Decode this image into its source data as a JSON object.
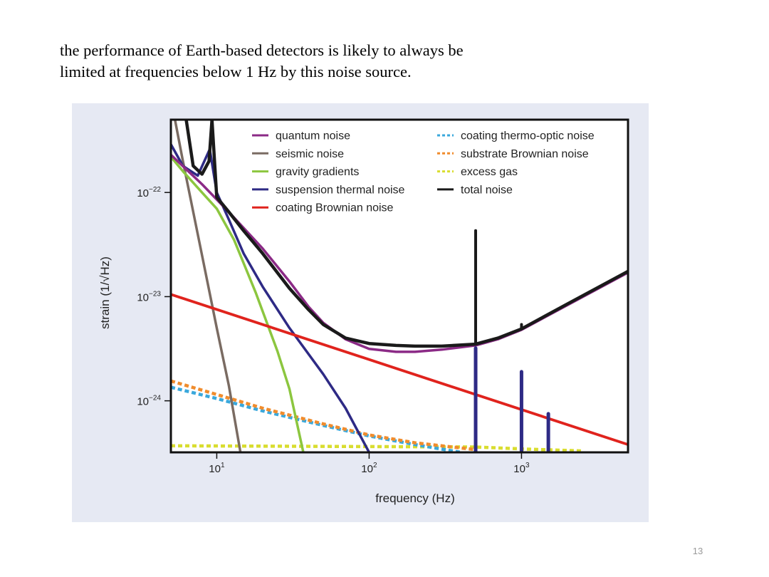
{
  "slide": {
    "text_line1": "the performance of Earth-based detectors is likely to always be",
    "text_line2": "limited at frequencies below 1 Hz by this noise source.",
    "page_number": "13"
  },
  "chart_data": {
    "type": "line",
    "xlabel": "frequency (Hz)",
    "ylabel": "strain (1/√Hz)",
    "xscale": "log",
    "yscale": "log",
    "xlim": [
      5,
      5000
    ],
    "ylim": [
      3.2e-25,
      5e-22
    ],
    "grid": false,
    "legend_position": "top",
    "x_ticks": [
      {
        "value": 10,
        "base": "10",
        "exp": "1"
      },
      {
        "value": 100,
        "base": "10",
        "exp": "2"
      },
      {
        "value": 1000,
        "base": "10",
        "exp": "3"
      }
    ],
    "y_ticks": [
      {
        "value": 1e-22,
        "base": "10",
        "exp": "−22"
      },
      {
        "value": 1e-23,
        "base": "10",
        "exp": "−23"
      },
      {
        "value": 1e-24,
        "base": "10",
        "exp": "−24"
      }
    ],
    "series": [
      {
        "name": "quantum noise",
        "color": "#8b2a86",
        "style": "solid",
        "points": [
          [
            5,
            2.3e-22
          ],
          [
            8,
            1.2e-22
          ],
          [
            12,
            6.5e-23
          ],
          [
            20,
            2.9e-23
          ],
          [
            30,
            1.4e-23
          ],
          [
            40,
            8e-24
          ],
          [
            50,
            5.6e-24
          ],
          [
            70,
            3.9e-24
          ],
          [
            100,
            3.15e-24
          ],
          [
            150,
            2.95e-24
          ],
          [
            200,
            2.95e-24
          ],
          [
            300,
            3.1e-24
          ],
          [
            500,
            3.4e-24
          ],
          [
            700,
            3.9e-24
          ],
          [
            1000,
            4.8e-24
          ],
          [
            2000,
            8.3e-24
          ],
          [
            5000,
            1.7e-23
          ]
        ]
      },
      {
        "name": "seismic noise",
        "color": "#7a6b62",
        "style": "solid",
        "points": [
          [
            5,
            8e-22
          ],
          [
            6,
            2e-22
          ],
          [
            8,
            2.5e-23
          ],
          [
            10,
            5e-24
          ],
          [
            12,
            1.4e-24
          ],
          [
            14.3,
            3.2e-25
          ]
        ]
      },
      {
        "name": "gravity gradients",
        "color": "#8cc63f",
        "style": "solid",
        "points": [
          [
            5,
            2.2e-22
          ],
          [
            6,
            1.6e-22
          ],
          [
            8,
            1e-22
          ],
          [
            10,
            7e-23
          ],
          [
            13,
            3.5e-23
          ],
          [
            18,
            1.1e-23
          ],
          [
            25,
            3e-24
          ],
          [
            30,
            1.3e-24
          ],
          [
            37,
            3.2e-25
          ]
        ]
      },
      {
        "name": "suspension thermal noise",
        "color": "#2e2a85",
        "style": "solid",
        "points": [
          [
            5,
            2.9e-22
          ],
          [
            6,
            1.8e-22
          ],
          [
            7.5,
            1.45e-22
          ],
          [
            9,
            2.6e-22
          ],
          [
            10,
            1e-22
          ],
          [
            12,
            5.5e-23
          ],
          [
            15,
            2.6e-23
          ],
          [
            20,
            1.25e-23
          ],
          [
            30,
            5e-24
          ],
          [
            50,
            1.8e-24
          ],
          [
            70,
            8.5e-25
          ],
          [
            100,
            3.2e-25
          ]
        ]
      },
      {
        "name": "coating Brownian noise",
        "color": "#e0231d",
        "style": "solid",
        "points": [
          [
            5,
            1.05e-23
          ],
          [
            5000,
            3.8e-25
          ]
        ]
      },
      {
        "name": "coating thermo-optic noise",
        "color": "#3aa8dc",
        "style": "dotted",
        "points": [
          [
            5,
            1.35e-24
          ],
          [
            10,
            1.05e-24
          ],
          [
            20,
            8e-25
          ],
          [
            50,
            5.8e-25
          ],
          [
            100,
            4.6e-25
          ],
          [
            200,
            3.8e-25
          ],
          [
            400,
            3.2e-25
          ]
        ]
      },
      {
        "name": "substrate Brownian noise",
        "color": "#f08c2d",
        "style": "dotted",
        "points": [
          [
            5,
            1.55e-24
          ],
          [
            10,
            1.15e-24
          ],
          [
            20,
            8.5e-25
          ],
          [
            50,
            6e-25
          ],
          [
            100,
            4.7e-25
          ],
          [
            200,
            3.95e-25
          ],
          [
            500,
            3.4e-25
          ]
        ]
      },
      {
        "name": "excess gas",
        "color": "#d9dd2f",
        "style": "dotted",
        "points": [
          [
            5,
            3.7e-25
          ],
          [
            500,
            3.6e-25
          ],
          [
            1000,
            3.45e-25
          ],
          [
            2500,
            3.3e-25
          ]
        ]
      },
      {
        "name": "total noise",
        "color": "#1a1a1a",
        "style": "solid",
        "points": [
          [
            6.3,
            5e-22
          ],
          [
            7,
            1.8e-22
          ],
          [
            8,
            1.5e-22
          ],
          [
            8.9,
            2e-22
          ],
          [
            9.3,
            5e-22
          ],
          [
            10,
            9e-23
          ],
          [
            12,
            6.5e-23
          ],
          [
            15,
            4.3e-23
          ],
          [
            20,
            2.6e-23
          ],
          [
            30,
            1.2e-23
          ],
          [
            40,
            7.5e-24
          ],
          [
            50,
            5.4e-24
          ],
          [
            70,
            4e-24
          ],
          [
            100,
            3.55e-24
          ],
          [
            150,
            3.4e-24
          ],
          [
            200,
            3.35e-24
          ],
          [
            300,
            3.35e-24
          ],
          [
            500,
            3.5e-24
          ],
          [
            700,
            4e-24
          ],
          [
            1000,
            4.9e-24
          ],
          [
            2000,
            8.5e-24
          ],
          [
            5000,
            1.75e-23
          ]
        ]
      }
    ],
    "resonance_spikes": [
      {
        "series": "total noise",
        "color": "#1a1a1a",
        "x": 500,
        "y_top": 4.3e-23,
        "y_base": 3.5e-24
      },
      {
        "series": "suspension thermal noise",
        "color": "#2e2a85",
        "x": 500,
        "y_top": 3.2e-24,
        "y_base": 3.2e-25
      },
      {
        "series": "suspension thermal noise",
        "color": "#2e2a85",
        "x": 1000,
        "y_top": 1.9e-24,
        "y_base": 3.2e-25
      },
      {
        "series": "suspension thermal noise",
        "color": "#2e2a85",
        "x": 1500,
        "y_top": 7.5e-25,
        "y_base": 3.2e-25
      },
      {
        "series": "total noise",
        "color": "#1a1a1a",
        "x": 1000,
        "y_top": 5.4e-24,
        "y_base": 4.9e-24
      }
    ]
  }
}
